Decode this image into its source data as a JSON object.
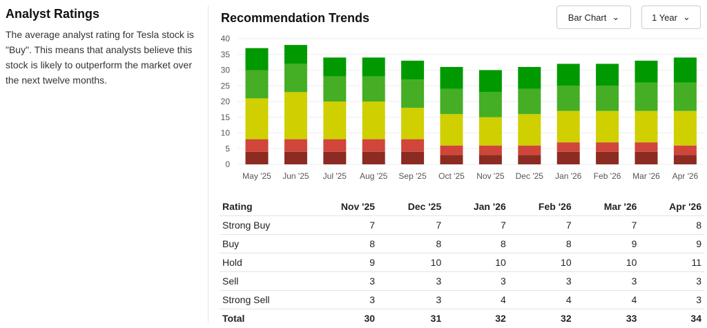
{
  "left": {
    "title": "Analyst Ratings",
    "text": "The average analyst rating for Tesla stock is \"Buy\". This means that analysts believe this stock is likely to outperform the market over the next twelve months."
  },
  "header": {
    "title": "Recommendation Trends",
    "chart_type": "Bar Chart",
    "period": "1 Year"
  },
  "colors": {
    "strong_sell": "#8b2b22",
    "sell": "#d0463a",
    "hold": "#d0cf00",
    "buy": "#45ae24",
    "strong_buy": "#009a00"
  },
  "chart_data": {
    "type": "bar",
    "stacked": true,
    "grid": true,
    "categories": [
      "May '25",
      "Jun '25",
      "Jul '25",
      "Aug '25",
      "Sep '25",
      "Oct '25",
      "Nov '25",
      "Dec '25",
      "Jan '26",
      "Feb '26",
      "Mar '26",
      "Apr '26"
    ],
    "ylim": [
      0,
      40
    ],
    "yticks": [
      0,
      5,
      10,
      15,
      20,
      25,
      30,
      35,
      40
    ],
    "series": [
      {
        "key": "strong_sell",
        "values": [
          4,
          4,
          4,
          4,
          4,
          3,
          3,
          3,
          4,
          4,
          4,
          3
        ]
      },
      {
        "key": "sell",
        "values": [
          4,
          4,
          4,
          4,
          4,
          3,
          3,
          3,
          3,
          3,
          3,
          3
        ]
      },
      {
        "key": "hold",
        "values": [
          13,
          15,
          12,
          12,
          10,
          10,
          9,
          10,
          10,
          10,
          10,
          11
        ]
      },
      {
        "key": "buy",
        "values": [
          9,
          9,
          8,
          8,
          9,
          8,
          8,
          8,
          8,
          8,
          9,
          9
        ]
      },
      {
        "key": "strong_buy",
        "values": [
          7,
          6,
          6,
          6,
          6,
          7,
          7,
          7,
          7,
          7,
          7,
          8
        ]
      }
    ]
  },
  "table": {
    "headers": [
      "Rating",
      "Nov '25",
      "Dec '25",
      "Jan '26",
      "Feb '26",
      "Mar '26",
      "Apr '26"
    ],
    "rows": [
      [
        "Strong Buy",
        "7",
        "7",
        "7",
        "7",
        "7",
        "8"
      ],
      [
        "Buy",
        "8",
        "8",
        "8",
        "8",
        "9",
        "9"
      ],
      [
        "Hold",
        "9",
        "10",
        "10",
        "10",
        "10",
        "11"
      ],
      [
        "Sell",
        "3",
        "3",
        "3",
        "3",
        "3",
        "3"
      ],
      [
        "Strong Sell",
        "3",
        "3",
        "4",
        "4",
        "4",
        "3"
      ],
      [
        "Total",
        "30",
        "31",
        "32",
        "32",
        "33",
        "34"
      ]
    ]
  }
}
